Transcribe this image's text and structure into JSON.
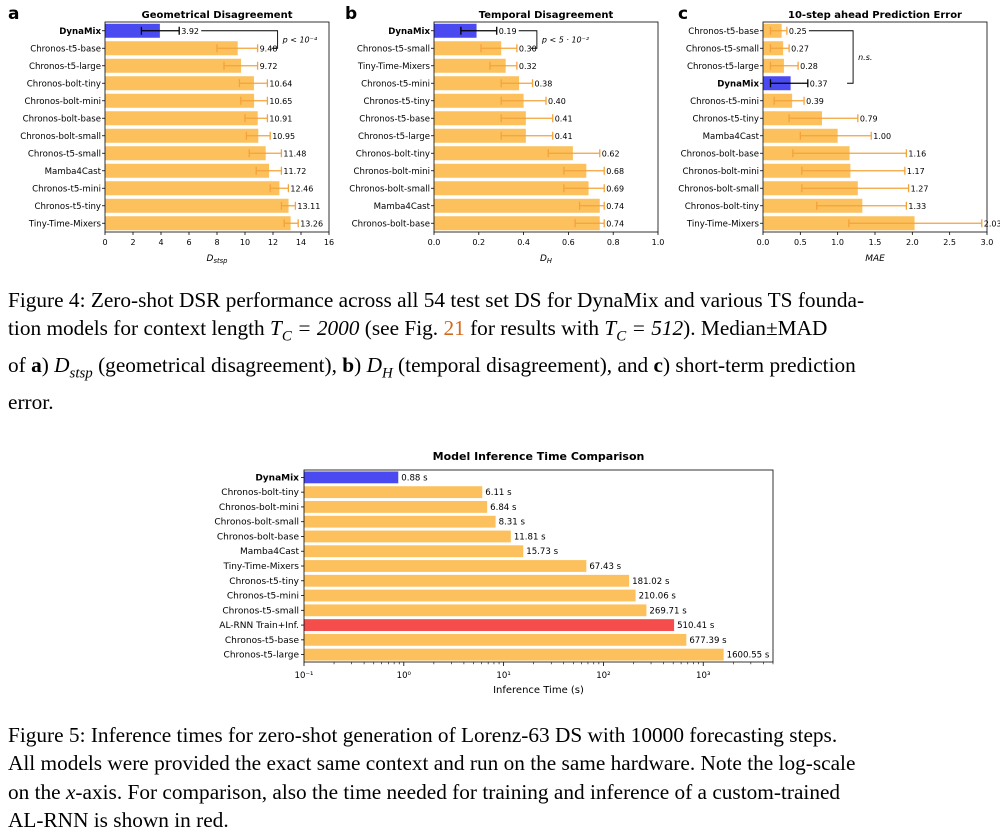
{
  "figure4": {
    "panels": [
      {
        "letter": "a",
        "chart_data": {
          "type": "bar",
          "title": "Geometrical Disagreement",
          "xlabel": "D_stsp",
          "xlim": [
            0,
            16
          ],
          "xticks": [
            0,
            2,
            4,
            6,
            8,
            10,
            12,
            14,
            16
          ],
          "categories": [
            "DynaMix",
            "Chronos-t5-base",
            "Chronos-t5-large",
            "Chronos-bolt-tiny",
            "Chronos-bolt-mini",
            "Chronos-bolt-base",
            "Chronos-bolt-small",
            "Chronos-t5-small",
            "Mamba4Cast",
            "Chronos-t5-mini",
            "Chronos-t5-tiny",
            "Tiny-Time-Mixers"
          ],
          "values": [
            3.92,
            9.48,
            9.72,
            10.64,
            10.65,
            10.91,
            10.95,
            11.48,
            11.72,
            12.46,
            13.11,
            13.26
          ],
          "labels": [
            "3.92",
            "9.48",
            "9.72",
            "10.64",
            "10.65",
            "10.91",
            "10.95",
            "11.48",
            "11.72",
            "12.46",
            "13.11",
            "13.26"
          ],
          "err_low": [
            2.6,
            8.0,
            8.5,
            9.6,
            9.7,
            10.0,
            10.1,
            10.3,
            10.8,
            11.8,
            12.6,
            12.8
          ],
          "err_high": [
            5.3,
            10.9,
            10.9,
            11.6,
            11.6,
            11.6,
            11.8,
            12.6,
            12.6,
            13.1,
            13.6,
            13.8
          ],
          "annotation": "p < 10⁻⁴",
          "colors": {
            "highlight": "#4a4af0",
            "bar": "#fcc15c",
            "error": "#f5a23a"
          }
        }
      },
      {
        "letter": "b",
        "chart_data": {
          "type": "bar",
          "title": "Temporal Disagreement",
          "xlabel": "D_H",
          "xlim": [
            0,
            1.0
          ],
          "xticks": [
            0.0,
            0.2,
            0.4,
            0.6,
            0.8,
            1.0
          ],
          "categories": [
            "DynaMix",
            "Chronos-t5-small",
            "Tiny-Time-Mixers",
            "Chronos-t5-mini",
            "Chronos-t5-tiny",
            "Chronos-t5-base",
            "Chronos-t5-large",
            "Chronos-bolt-tiny",
            "Chronos-bolt-mini",
            "Chronos-bolt-small",
            "Mamba4Cast",
            "Chronos-bolt-base"
          ],
          "values": [
            0.19,
            0.3,
            0.32,
            0.38,
            0.4,
            0.41,
            0.41,
            0.62,
            0.68,
            0.69,
            0.74,
            0.74
          ],
          "labels": [
            "0.19",
            "0.30",
            "0.32",
            "0.38",
            "0.40",
            "0.41",
            "0.41",
            "0.62",
            "0.68",
            "0.69",
            "0.74",
            "0.74"
          ],
          "err_low": [
            0.12,
            0.21,
            0.25,
            0.3,
            0.3,
            0.3,
            0.3,
            0.51,
            0.58,
            0.58,
            0.65,
            0.63
          ],
          "err_high": [
            0.28,
            0.37,
            0.37,
            0.44,
            0.5,
            0.53,
            0.53,
            0.74,
            0.76,
            0.76,
            0.76,
            0.76
          ],
          "annotation": "p < 5 · 10⁻²",
          "colors": {
            "highlight": "#4a4af0",
            "bar": "#fcc15c",
            "error": "#f5a23a"
          }
        }
      },
      {
        "letter": "c",
        "chart_data": {
          "type": "bar",
          "title": "10-step ahead Prediction Error",
          "xlabel": "MAE",
          "xlim": [
            0,
            3.0
          ],
          "xticks": [
            0.0,
            0.5,
            1.0,
            1.5,
            2.0,
            2.5,
            3.0
          ],
          "categories": [
            "Chronos-t5-base",
            "Chronos-t5-small",
            "Chronos-t5-large",
            "DynaMix",
            "Chronos-t5-mini",
            "Chronos-t5-tiny",
            "Mamba4Cast",
            "Chronos-bolt-base",
            "Chronos-bolt-mini",
            "Chronos-bolt-small",
            "Chronos-bolt-tiny",
            "Tiny-Time-Mixers"
          ],
          "values": [
            0.25,
            0.27,
            0.28,
            0.37,
            0.39,
            0.79,
            1.0,
            1.16,
            1.17,
            1.27,
            1.33,
            2.03
          ],
          "labels": [
            "0.25",
            "0.27",
            "0.28",
            "0.37",
            "0.39",
            "0.79",
            "1.00",
            "1.16",
            "1.17",
            "1.27",
            "1.33",
            "2.03"
          ],
          "err_low": [
            0.1,
            0.1,
            0.1,
            0.1,
            0.15,
            0.35,
            0.5,
            0.4,
            0.52,
            0.52,
            0.72,
            1.15
          ],
          "err_high": [
            0.32,
            0.35,
            0.47,
            0.6,
            0.55,
            1.27,
            1.45,
            1.92,
            1.9,
            1.95,
            1.92,
            2.93
          ],
          "annotation": "n.s.",
          "colors": {
            "highlight": "#4a4af0",
            "bar": "#fcc15c",
            "error": "#f5a23a"
          }
        }
      }
    ],
    "caption": {
      "label": "Figure 4:",
      "line1": "Zero-shot DSR performance across all 54 test set DS for DynaMix and various TS founda-",
      "line2_pre": "tion models for context length ",
      "tc1": "T_C = 2000",
      "line2_mid": " (see Fig. ",
      "ref": "21",
      "line2_mid2": " for results with ",
      "tc2": "T_C = 512",
      "line2_post": "). Median±MAD",
      "line3_pre": "of ",
      "a": "a",
      "dstsp": "D_stsp",
      "line3_mid1": " (geometrical disagreement), ",
      "b": "b",
      "dh": "D_H",
      "line3_mid2": " (temporal disagreement), and ",
      "c": "c",
      "line3_post": " short-term prediction",
      "line4": "error."
    }
  },
  "figure5": {
    "chart_data": {
      "type": "bar",
      "title": "Model Inference Time Comparison",
      "xlabel": "Inference Time (s)",
      "xscale": "log",
      "xlim": [
        0.1,
        5000
      ],
      "xticks": [
        "10⁻¹",
        "10⁰",
        "10¹",
        "10²",
        "10³"
      ],
      "categories": [
        "DynaMix",
        "Chronos-bolt-tiny",
        "Chronos-bolt-mini",
        "Chronos-bolt-small",
        "Chronos-bolt-base",
        "Mamba4Cast",
        "Tiny-Time-Mixers",
        "Chronos-t5-tiny",
        "Chronos-t5-mini",
        "Chronos-t5-small",
        "AL-RNN Train+Inf.",
        "Chronos-t5-base",
        "Chronos-t5-large"
      ],
      "values": [
        0.88,
        6.11,
        6.84,
        8.31,
        11.81,
        15.73,
        67.43,
        181.02,
        210.06,
        269.71,
        510.41,
        677.39,
        1600.55
      ],
      "labels": [
        "0.88 s",
        "6.11 s",
        "6.84 s",
        "8.31 s",
        "11.81 s",
        "15.73 s",
        "67.43 s",
        "181.02 s",
        "210.06 s",
        "269.71 s",
        "510.41 s",
        "677.39 s",
        "1600.55 s"
      ],
      "colors": {
        "dynamix": "#4a4af0",
        "bar": "#fcc15c",
        "alrnn": "#f54c4c"
      }
    },
    "caption": {
      "label": "Figure 5:",
      "line1": "Inference times for zero-shot generation of Lorenz-63 DS with 10000 forecasting steps.",
      "line2": "All models were provided the exact same context and run on the same hardware. Note the log-scale",
      "line3_pre": "on the ",
      "x": "x",
      "line3_post": "-axis. For comparison, also the time needed for training and inference of a custom-trained",
      "line4": "AL-RNN is shown in red."
    }
  }
}
